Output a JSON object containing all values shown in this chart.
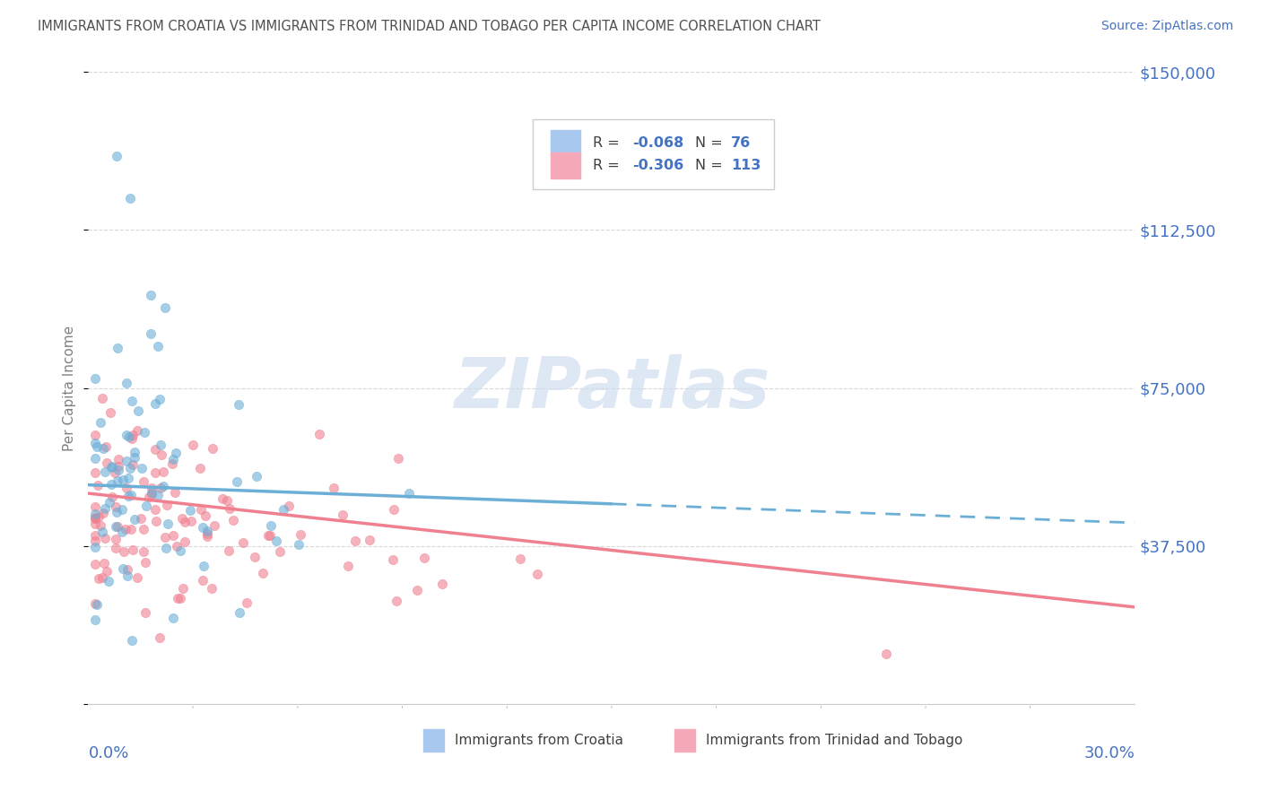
{
  "title": "IMMIGRANTS FROM CROATIA VS IMMIGRANTS FROM TRINIDAD AND TOBAGO PER CAPITA INCOME CORRELATION CHART",
  "source": "Source: ZipAtlas.com",
  "ylabel": "Per Capita Income",
  "xlim": [
    0.0,
    0.3
  ],
  "ylim": [
    0,
    150000
  ],
  "ytick_vals": [
    0,
    37500,
    75000,
    112500,
    150000
  ],
  "ytick_labels": [
    "",
    "$37,500",
    "$75,000",
    "$112,500",
    "$150,000"
  ],
  "croatia_color": "#6baed6",
  "trinidad_color": "#f08090",
  "croatia_legend_color": "#a8c8f0",
  "trinidad_legend_color": "#f5a8b8",
  "croatia_R": -0.068,
  "croatia_N": 76,
  "trinidad_R": -0.306,
  "trinidad_N": 113,
  "watermark_text": "ZIPatlas",
  "watermark_color": "#d0ddf0",
  "grid_color": "#d8d8d8",
  "background_color": "#ffffff",
  "title_color": "#505050",
  "source_color": "#4472c4",
  "axis_value_color": "#4472c4",
  "ylabel_color": "#808080",
  "croatia_line_solid_end": 0.15,
  "trinidad_line_solid_end": 0.3,
  "trend_start_x": 0.0,
  "trend_end_x": 0.3
}
